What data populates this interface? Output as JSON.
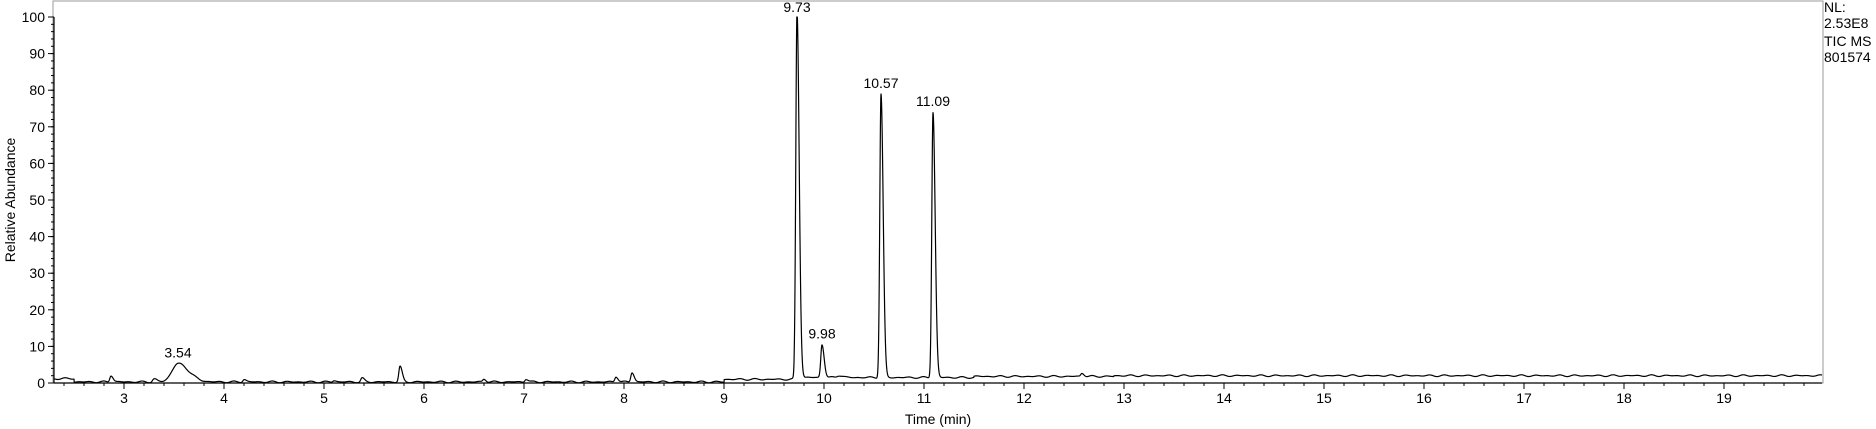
{
  "chart_data": {
    "type": "line",
    "title": "",
    "xlabel": "Time (min)",
    "ylabel": "Relative Abundance",
    "xlim": [
      2.3,
      19.98
    ],
    "ylim": [
      0,
      100
    ],
    "x_ticks": [
      3,
      4,
      5,
      6,
      7,
      8,
      9,
      10,
      11,
      12,
      13,
      14,
      15,
      16,
      17,
      18,
      19
    ],
    "y_ticks": [
      0,
      10,
      20,
      30,
      40,
      50,
      60,
      70,
      80,
      90,
      100
    ],
    "x_minor_step": 0.2,
    "y_minor_step": 2,
    "grid": false,
    "info": [
      "NL:",
      "2.53E8",
      "TIC  MS",
      "801574"
    ],
    "peaks": [
      {
        "rt": 3.54,
        "label": "3.54",
        "height": 5.0,
        "width": 0.06
      },
      {
        "rt": 9.73,
        "label": "9.73",
        "height": 100,
        "width": 0.012
      },
      {
        "rt": 9.98,
        "label": "9.98",
        "height": 9.0,
        "width": 0.012
      },
      {
        "rt": 10.57,
        "label": "10.57",
        "height": 77.5,
        "width": 0.012
      },
      {
        "rt": 11.09,
        "label": "11.09",
        "height": 72.5,
        "width": 0.012
      }
    ],
    "minor_peaks": [
      {
        "rt": 2.87,
        "height": 1.8,
        "width": 0.012
      },
      {
        "rt": 3.3,
        "height": 0.8,
        "width": 0.015
      },
      {
        "rt": 4.2,
        "height": 0.7,
        "width": 0.012
      },
      {
        "rt": 5.1,
        "height": 0.4,
        "width": 0.012
      },
      {
        "rt": 5.38,
        "height": 1.0,
        "width": 0.012
      },
      {
        "rt": 5.76,
        "height": 4.2,
        "width": 0.012
      },
      {
        "rt": 6.6,
        "height": 0.8,
        "width": 0.012
      },
      {
        "rt": 7.02,
        "height": 0.8,
        "width": 0.012
      },
      {
        "rt": 7.92,
        "height": 1.5,
        "width": 0.012
      },
      {
        "rt": 8.08,
        "height": 2.6,
        "width": 0.012
      },
      {
        "rt": 10.15,
        "height": 0.6,
        "width": 0.02
      },
      {
        "rt": 12.58,
        "height": 0.9,
        "width": 0.012
      }
    ],
    "line_color": "#000000",
    "axis_color": "#000000",
    "background": "#ffffff"
  }
}
